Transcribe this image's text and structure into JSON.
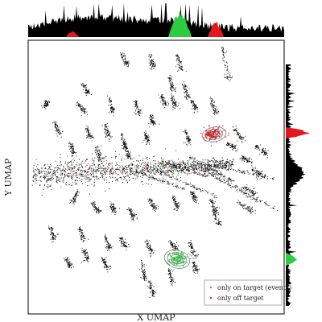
{
  "chart_data": {
    "type": "scatter",
    "title": "",
    "xlabel": "X UMAP",
    "ylabel": "Y UMAP",
    "axis_ticks": "none",
    "grid": false,
    "legend": {
      "placement": "bottom-right",
      "entries": [
        {
          "label": "only on target (events)",
          "color": "#2ecc40",
          "marker": "dot"
        },
        {
          "label": "only off target",
          "color": "#e3171c",
          "marker": "dot"
        }
      ]
    },
    "marginals": {
      "top": "x-density histogram",
      "right": "y-density histogram"
    },
    "series": [
      {
        "role": "background points",
        "color": "#000000"
      },
      {
        "role": "only on target (events)",
        "color": "#2ecc40",
        "cluster_center_estimate": [
          0.57,
          -0.81
        ]
      },
      {
        "role": "only off target",
        "color": "#e3171c",
        "cluster_center_estimate": [
          0.85,
          0.23
        ]
      }
    ]
  },
  "legend": {
    "on_target_label": "only on target (events)",
    "off_target_label": "only off target"
  },
  "axes": {
    "xlabel": "X UMAP",
    "ylabel": "Y UMAP"
  },
  "colors": {
    "on_target": "#2ecc40",
    "off_target": "#e3171c",
    "points": "#000000"
  }
}
